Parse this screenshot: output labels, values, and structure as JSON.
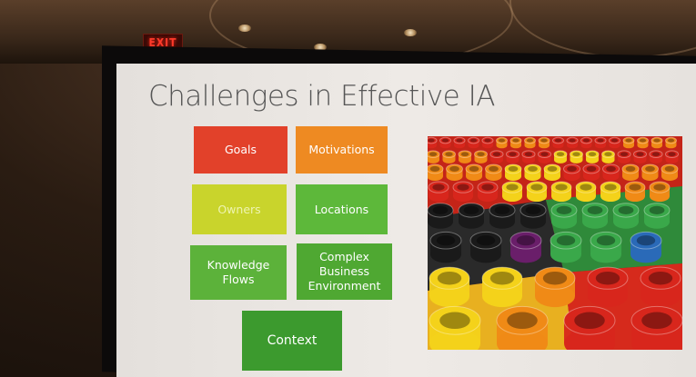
{
  "room": {
    "exit_sign": "EXIT"
  },
  "slide": {
    "title": "Challenges in Effective IA",
    "tiles": [
      {
        "label": "Goals",
        "color": "#e2412a"
      },
      {
        "label": "Motivations",
        "color": "#ee8a22"
      },
      {
        "label": "Owners",
        "color": "#c9d42c"
      },
      {
        "label": "Locations",
        "color": "#5db83a"
      },
      {
        "label": "Knowledge\nFlows",
        "color": "#5cb23a"
      },
      {
        "label": "Complex\nBusiness\nEnvironment",
        "color": "#4fa832"
      },
      {
        "label": "Context",
        "color": "#3c9a2e"
      }
    ],
    "image": {
      "description_icon": "colorful-building-blocks-icon",
      "palette": [
        "#d8261c",
        "#f08a16",
        "#f4d21a",
        "#3aa84a",
        "#2a6ab8",
        "#6a1e6a",
        "#1a1a1a"
      ]
    }
  }
}
